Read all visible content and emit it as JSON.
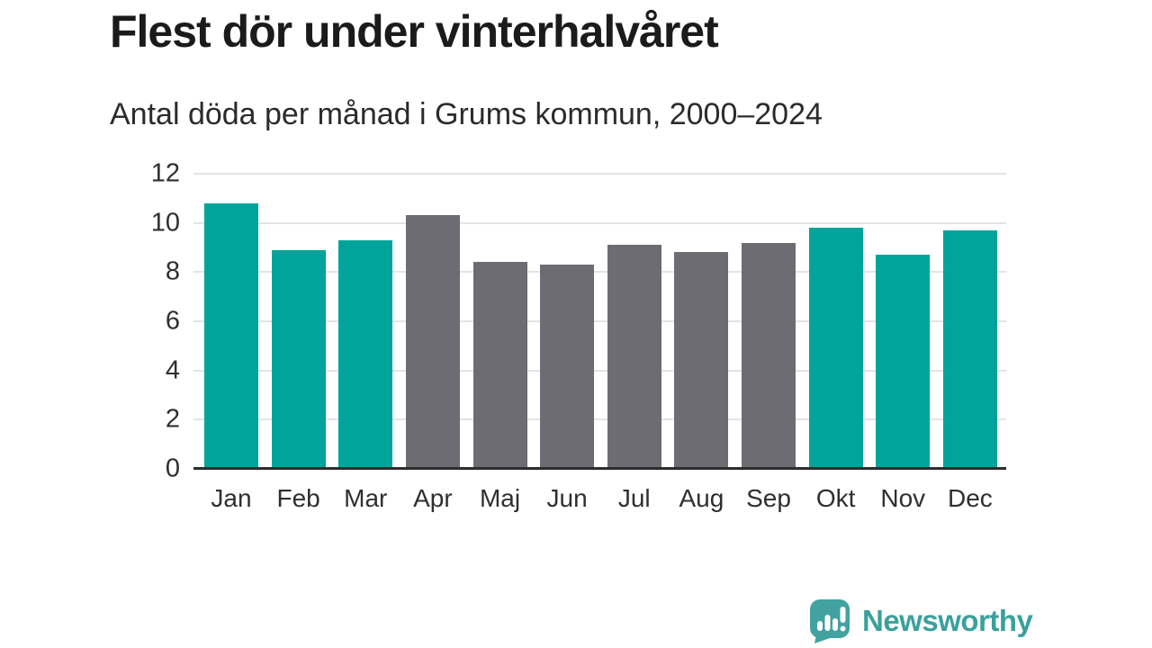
{
  "header": {
    "title": "Flest dör under vinterhalvåret",
    "subtitle": "Antal döda per månad i Grums kommun, 2000–2024"
  },
  "chart_data": {
    "type": "bar",
    "title": "Flest dör under vinterhalvåret",
    "subtitle": "Antal döda per månad i Grums kommun, 2000–2024",
    "categories": [
      "Jan",
      "Feb",
      "Mar",
      "Apr",
      "Maj",
      "Jun",
      "Jul",
      "Aug",
      "Sep",
      "Okt",
      "Nov",
      "Dec"
    ],
    "values": [
      10.8,
      8.9,
      9.3,
      10.3,
      8.4,
      8.3,
      9.1,
      8.8,
      9.2,
      9.8,
      8.7,
      9.7
    ],
    "highlight": [
      true,
      true,
      true,
      false,
      false,
      false,
      false,
      false,
      false,
      true,
      true,
      true
    ],
    "xlabel": "",
    "ylabel": "",
    "ylim": [
      0,
      12
    ],
    "yticks": [
      0,
      2,
      4,
      6,
      8,
      10,
      12
    ],
    "grid": true,
    "legend_position": "none",
    "colors": {
      "highlight": "#00a49a",
      "base": "#6d6c72",
      "gridline": "#e4e4e4",
      "axis": "#2d2d2d"
    }
  },
  "footer": {
    "brand": "Newsworthy",
    "brand_color": "#3aa19c",
    "logo_icon": "bar-chart-speech-bubble-icon",
    "logo_color": "#41a2a0"
  }
}
